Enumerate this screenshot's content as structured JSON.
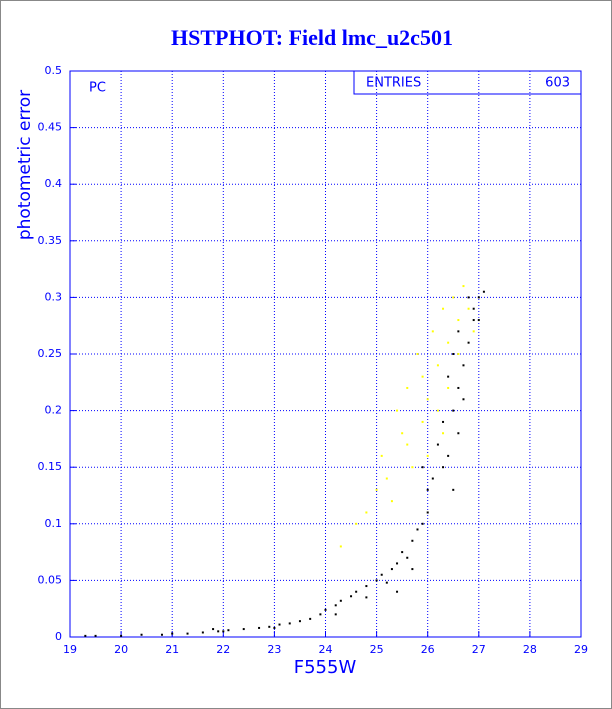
{
  "chart_data": {
    "type": "scatter",
    "title": "HSTPHOT: Field lmc_u2c501",
    "x_label": "F555W",
    "y_label": "photometric error",
    "annotation": "PC",
    "entries_label": "ENTRIES",
    "entries": 603,
    "xlim": [
      19,
      29
    ],
    "ylim": [
      0,
      0.5
    ],
    "xticks": [
      19,
      20,
      21,
      22,
      23,
      24,
      25,
      26,
      27,
      28,
      29
    ],
    "yticks": [
      0,
      0.05,
      0.1,
      0.15,
      0.2,
      0.25,
      0.3,
      0.35,
      0.4,
      0.45,
      0.5
    ],
    "grid": true,
    "series": [
      {
        "color": "#000000",
        "x": [
          19.3,
          19.5,
          20.0,
          20.4,
          20.8,
          21.0,
          21.3,
          21.6,
          21.9,
          22.1,
          22.4,
          22.7,
          22.9,
          23.1,
          23.3,
          23.5,
          23.7,
          23.9,
          24.0,
          24.2,
          24.3,
          24.5,
          24.6,
          24.8,
          25.0,
          25.1,
          25.2,
          25.3,
          25.4,
          25.5,
          25.6,
          25.7,
          25.8,
          25.9,
          26.0,
          26.0,
          25.9,
          26.1,
          26.2,
          26.3,
          26.4,
          26.5,
          26.6,
          26.5,
          26.6,
          26.7,
          26.8,
          26.9,
          27.0,
          27.1,
          26.9,
          26.7,
          26.4,
          26.3,
          26.6,
          25.7,
          25.4,
          24.8,
          24.2,
          23.0,
          22.0,
          21.8,
          26.8,
          27.0,
          26.5
        ],
        "y": [
          0.001,
          0.001,
          0.001,
          0.002,
          0.002,
          0.003,
          0.003,
          0.004,
          0.005,
          0.006,
          0.007,
          0.008,
          0.009,
          0.011,
          0.012,
          0.014,
          0.016,
          0.02,
          0.024,
          0.028,
          0.032,
          0.036,
          0.04,
          0.045,
          0.05,
          0.055,
          0.048,
          0.06,
          0.065,
          0.075,
          0.07,
          0.085,
          0.095,
          0.1,
          0.11,
          0.13,
          0.15,
          0.14,
          0.17,
          0.19,
          0.16,
          0.2,
          0.22,
          0.25,
          0.27,
          0.24,
          0.26,
          0.28,
          0.3,
          0.305,
          0.29,
          0.21,
          0.23,
          0.15,
          0.18,
          0.06,
          0.04,
          0.035,
          0.02,
          0.008,
          0.005,
          0.007,
          0.3,
          0.28,
          0.13
        ]
      },
      {
        "color": "#ffff00",
        "x": [
          24.3,
          24.6,
          25.0,
          25.1,
          25.3,
          25.4,
          25.5,
          25.6,
          25.7,
          25.8,
          25.9,
          26.0,
          26.1,
          26.2,
          26.3,
          26.4,
          26.5,
          26.6,
          26.7,
          26.2,
          25.9,
          26.4,
          26.8,
          26.3,
          25.6,
          25.2,
          26.6,
          26.0,
          24.8,
          26.9
        ],
        "y": [
          0.08,
          0.1,
          0.13,
          0.16,
          0.12,
          0.2,
          0.18,
          0.22,
          0.15,
          0.25,
          0.19,
          0.21,
          0.27,
          0.24,
          0.29,
          0.26,
          0.3,
          0.28,
          0.31,
          0.2,
          0.23,
          0.22,
          0.29,
          0.18,
          0.17,
          0.14,
          0.25,
          0.16,
          0.11,
          0.27
        ]
      }
    ]
  }
}
